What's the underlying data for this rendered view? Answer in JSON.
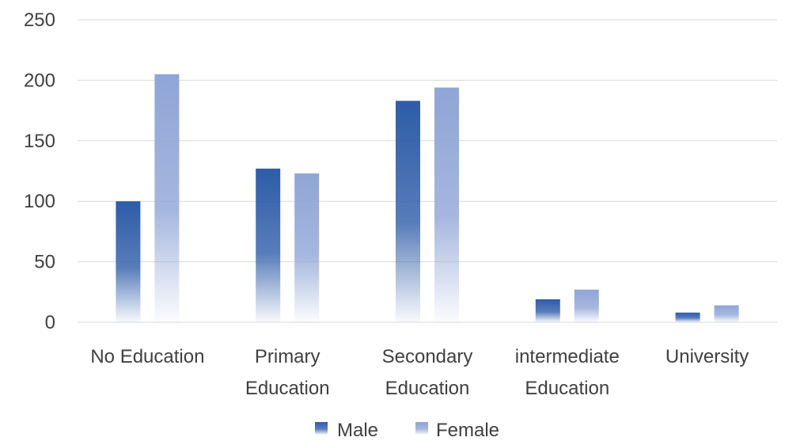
{
  "chart_data": {
    "type": "bar",
    "categories": [
      [
        "No Education"
      ],
      [
        "Primary",
        "Education"
      ],
      [
        "Secondary",
        "Education"
      ],
      [
        "intermediate",
        "Education"
      ],
      [
        "University"
      ]
    ],
    "series": [
      {
        "name": "Male",
        "values": [
          100,
          127,
          183,
          19,
          8
        ]
      },
      {
        "name": "Female",
        "values": [
          205,
          123,
          194,
          27,
          14
        ]
      }
    ],
    "ylim": [
      0,
      250
    ],
    "yticks": [
      0,
      50,
      100,
      150,
      200,
      250
    ],
    "grid": true,
    "legend_position": "bottom",
    "colors": {
      "Male": "#2e5ca8",
      "Female": "#8fa5d6"
    }
  }
}
